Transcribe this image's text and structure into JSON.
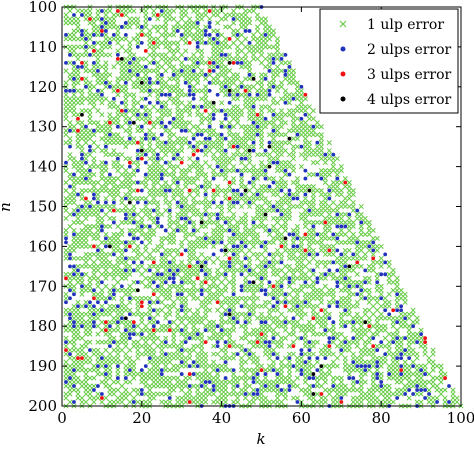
{
  "chart_data": {
    "type": "scatter",
    "xlabel": "k",
    "ylabel": "n",
    "xlim": [
      0,
      100
    ],
    "ylim": [
      100,
      200
    ],
    "y_inverted": true,
    "x_ticks": [
      "0",
      "20",
      "40",
      "60",
      "80",
      "100"
    ],
    "y_ticks": [
      "100",
      "110",
      "120",
      "130",
      "140",
      "150",
      "160",
      "170",
      "180",
      "190",
      "200"
    ],
    "grid": false,
    "legend_position": "top-right",
    "domain": "k <= n - 100 + 2*(n - 100)... triangular region bounded by k = 0 and the line from (50,100) to (100,200)",
    "series": [
      {
        "name": "1 ulp error",
        "marker": "x",
        "color": "#66cc44",
        "density": 0.55
      },
      {
        "name": "2 ulps error",
        "marker": "dot",
        "color": "#2233bb",
        "density": 0.09
      },
      {
        "name": "3 ulps error",
        "marker": "dot",
        "color": "#ee1111",
        "density": 0.012
      },
      {
        "name": "4 ulps error",
        "marker": "dot",
        "color": "#000000",
        "density": 0.004
      }
    ]
  }
}
